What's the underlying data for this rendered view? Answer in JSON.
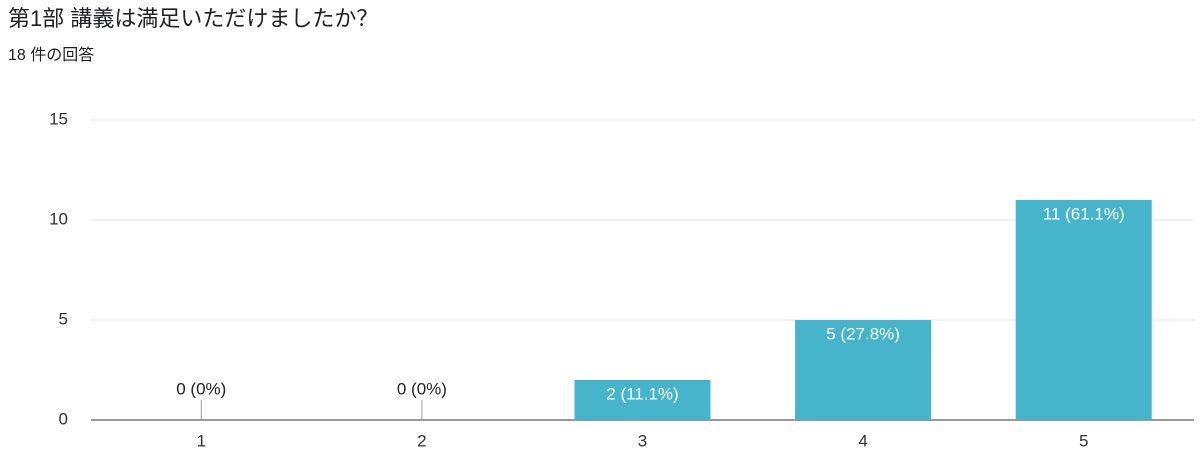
{
  "chart_data": {
    "type": "bar",
    "title": "第1部 講義は満足いただけましたか？",
    "subtitle": "18 件の回答",
    "categories": [
      "1",
      "2",
      "3",
      "4",
      "5"
    ],
    "values": [
      0,
      0,
      2,
      5,
      11
    ],
    "value_labels": [
      "0 (0%)",
      "0 (0%)",
      "2 (11.1%)",
      "5 (27.8%)",
      "11 (61.1%)"
    ],
    "color": "#46b4cb",
    "ylim": [
      0,
      15
    ],
    "yticks": [
      0,
      5,
      10,
      15
    ],
    "grid": true
  }
}
